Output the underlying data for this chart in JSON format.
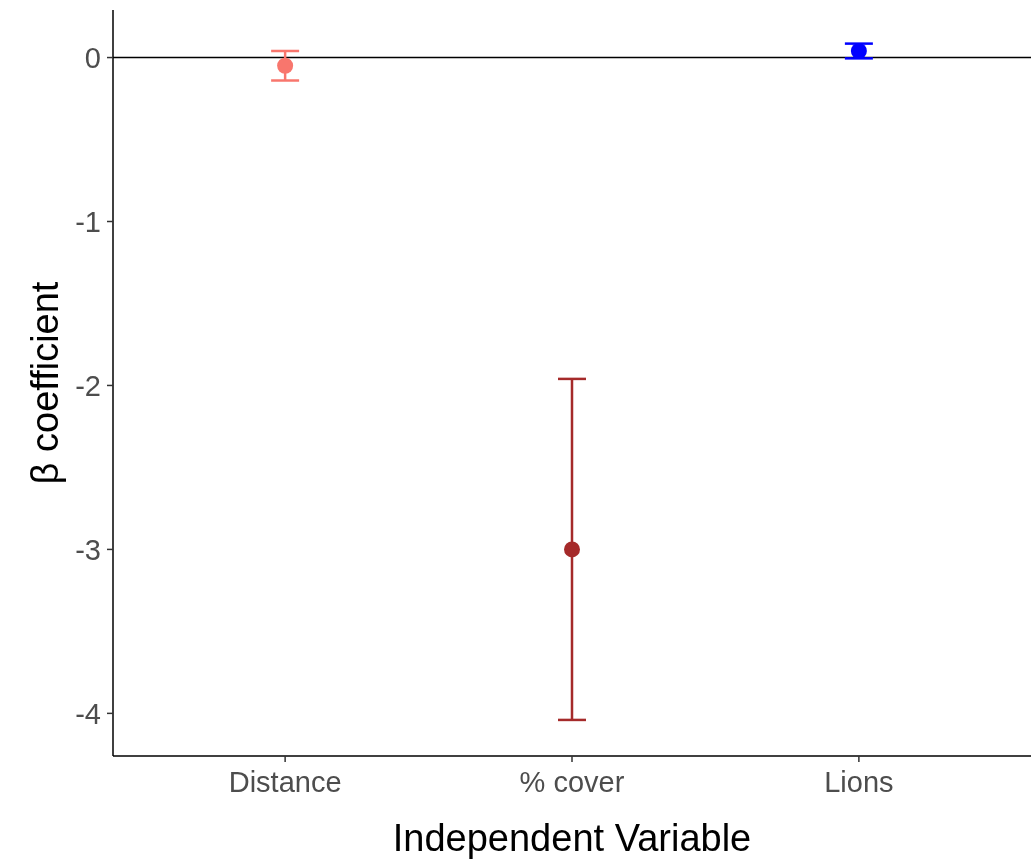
{
  "chart_data": {
    "type": "scatter",
    "xlabel": "Independent Variable",
    "ylabel": "β coefficient",
    "categories": [
      "Distance",
      "% cover",
      "Lions"
    ],
    "values": [
      -0.05,
      -3.0,
      0.04
    ],
    "colors": [
      "#f8766d",
      "#a52a2a",
      "#0000ff"
    ],
    "errors": [
      [
        -0.14,
        0.04
      ],
      [
        -4.04,
        -1.96
      ],
      [
        -0.005,
        0.085
      ]
    ],
    "ylim": [
      -4.26,
      0.29
    ],
    "yticks": [
      0,
      -1,
      -2,
      -3,
      -4
    ],
    "grid": false,
    "marker": "circle",
    "ref_lines": [
      {
        "axis": "y",
        "value": 0,
        "color": "#000000"
      }
    ]
  }
}
